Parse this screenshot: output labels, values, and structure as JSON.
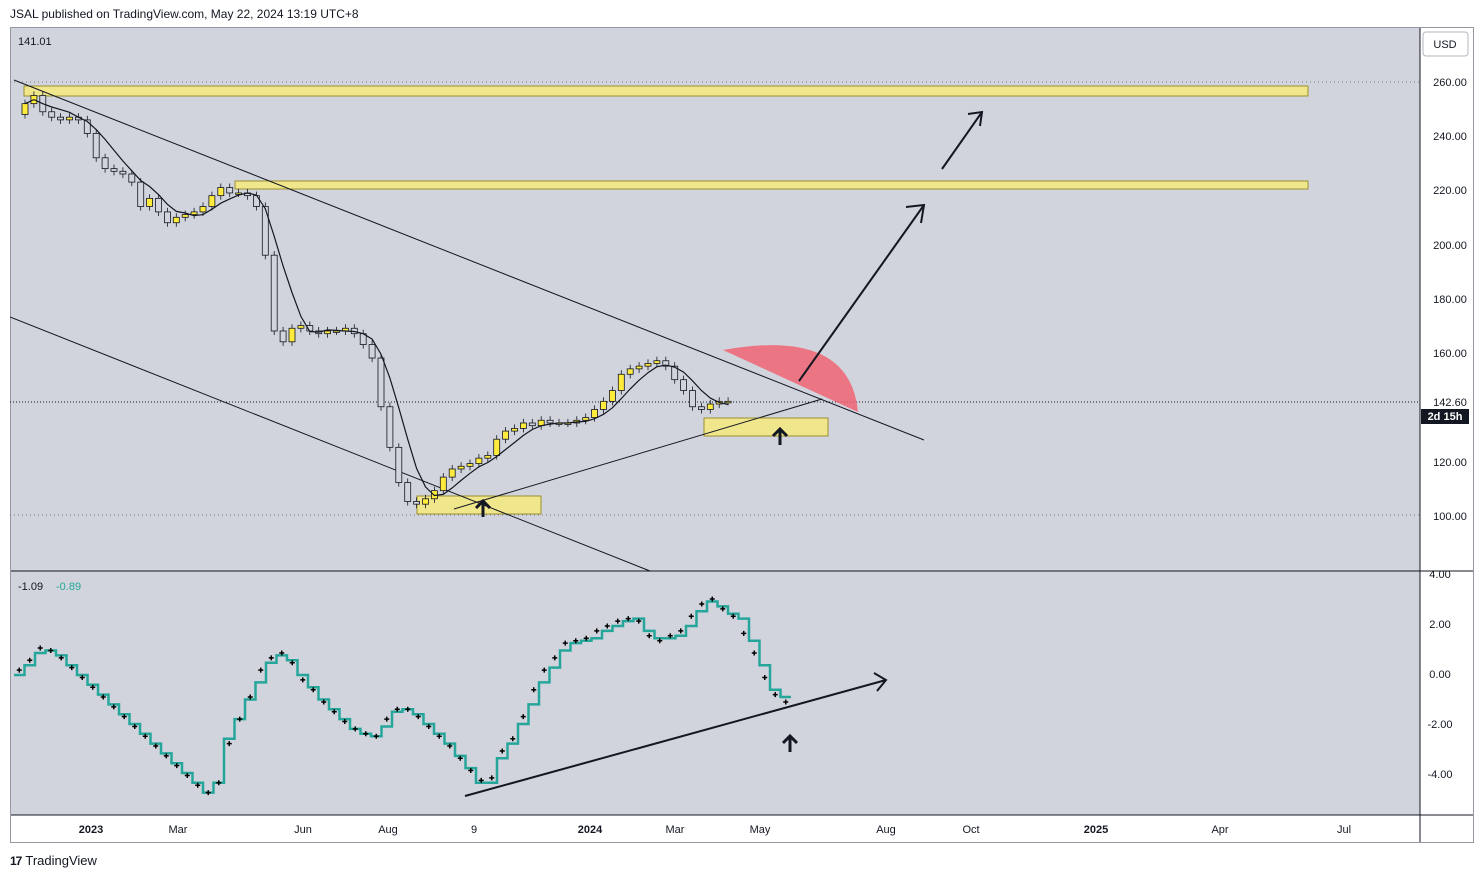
{
  "header": {
    "published": "JSAL published on TradingView.com, May 22, 2024 13:19 UTC+8"
  },
  "footer": {
    "brand": "TradingView",
    "logo_glyph": "17"
  },
  "currency_button": "USD",
  "main_pane": {
    "value_readout": "141.01",
    "price_ticks": [
      "260.00",
      "240.00",
      "220.00",
      "200.00",
      "180.00",
      "160.00",
      "120.00",
      "100.00"
    ],
    "last_price_label": "142.60",
    "countdown_label": "2d 15h"
  },
  "oscillator_pane": {
    "readout_1": "-1.09",
    "readout_2": "-0.89",
    "ticks": [
      "4.00",
      "2.00",
      "0.00",
      "-2.00",
      "-4.00"
    ]
  },
  "time_axis": [
    "2023",
    "Mar",
    "Jun",
    "Aug",
    "9",
    "2024",
    "Mar",
    "May",
    "Aug",
    "Oct",
    "2025",
    "Apr",
    "Jul"
  ],
  "colors": {
    "background": "#d1d4dc",
    "bull_candle": "#ffeb3b",
    "bear_candle": "#d1d4dc",
    "zone_fill": "#f0e68c",
    "arc_fill": "#f25c6e",
    "osc_line": "#26a69a"
  },
  "chart_data": [
    {
      "type": "candlestick",
      "title": "",
      "ylim": [
        90,
        270
      ],
      "y_ticks": [
        100,
        120,
        140,
        160,
        180,
        200,
        220,
        240,
        260
      ],
      "last_price": 142.6,
      "closes": [
        252,
        255,
        249,
        247,
        246,
        247,
        246,
        241,
        232,
        228,
        227,
        226,
        223,
        214,
        217,
        212,
        208,
        210,
        211,
        212,
        214,
        218,
        221,
        219,
        219,
        218,
        214,
        196,
        168,
        164,
        169,
        170,
        168,
        167,
        168,
        168,
        169,
        167,
        163,
        158,
        140,
        125,
        112,
        105,
        104,
        106,
        109,
        114,
        117,
        118,
        119,
        121,
        122,
        128,
        131,
        132,
        134,
        133,
        135,
        134,
        134,
        134,
        135,
        136,
        139,
        142,
        146,
        152,
        154,
        155,
        156,
        157,
        155,
        150,
        146,
        140,
        139,
        141,
        142,
        142
      ]
    },
    {
      "type": "line",
      "title": "",
      "ylim": [
        -5.6,
        4.0
      ],
      "y_ticks": [
        4,
        2,
        0,
        -2,
        -4
      ],
      "series": [
        {
          "values": [
            0.0,
            0.4,
            0.9,
            1.0,
            0.8,
            0.4,
            0.0,
            -0.4,
            -0.8,
            -1.2,
            -1.6,
            -2.0,
            -2.4,
            -2.8,
            -3.2,
            -3.6,
            -4.0,
            -4.4,
            -4.8,
            -4.4,
            -2.6,
            -1.8,
            -1.0,
            -0.3,
            0.5,
            0.8,
            0.6,
            0.0,
            -0.5,
            -1.0,
            -1.4,
            -1.8,
            -2.2,
            -2.4,
            -2.5,
            -2.1,
            -1.5,
            -1.4,
            -1.6,
            -2.0,
            -2.4,
            -2.8,
            -3.3,
            -3.8,
            -4.4,
            -4.4,
            -3.4,
            -2.8,
            -2.0,
            -1.2,
            -0.3,
            0.3,
            1.0,
            1.3,
            1.4,
            1.5,
            1.8,
            2.0,
            2.2,
            2.3,
            1.8,
            1.5,
            1.5,
            1.6,
            2.0,
            2.6,
            3.0,
            2.8,
            2.5,
            2.3,
            1.4,
            0.4,
            -0.6,
            -0.9
          ]
        },
        {
          "values": [
            0.2,
            0.6,
            1.1,
            1.0,
            0.7,
            0.3,
            -0.1,
            -0.5,
            -0.9,
            -1.3,
            -1.7,
            -2.1,
            -2.5,
            -2.9,
            -3.3,
            -3.7,
            -4.1,
            -4.5,
            -4.8,
            -4.4,
            -2.8,
            -1.8,
            -0.9,
            0.2,
            0.7,
            0.9,
            0.5,
            -0.2,
            -0.6,
            -1.1,
            -1.5,
            -1.9,
            -2.2,
            -2.4,
            -2.5,
            -1.8,
            -1.4,
            -1.4,
            -1.7,
            -2.1,
            -2.5,
            -2.9,
            -3.4,
            -3.9,
            -4.3,
            -4.2,
            -3.1,
            -2.6,
            -1.7,
            -0.6,
            0.2,
            0.7,
            1.3,
            1.4,
            1.5,
            1.8,
            2.0,
            2.2,
            2.3,
            2.2,
            1.6,
            1.4,
            1.6,
            1.8,
            2.4,
            2.9,
            3.1,
            2.7,
            2.4,
            1.7,
            0.9,
            -0.1,
            -0.8,
            -1.1
          ]
        }
      ]
    }
  ]
}
